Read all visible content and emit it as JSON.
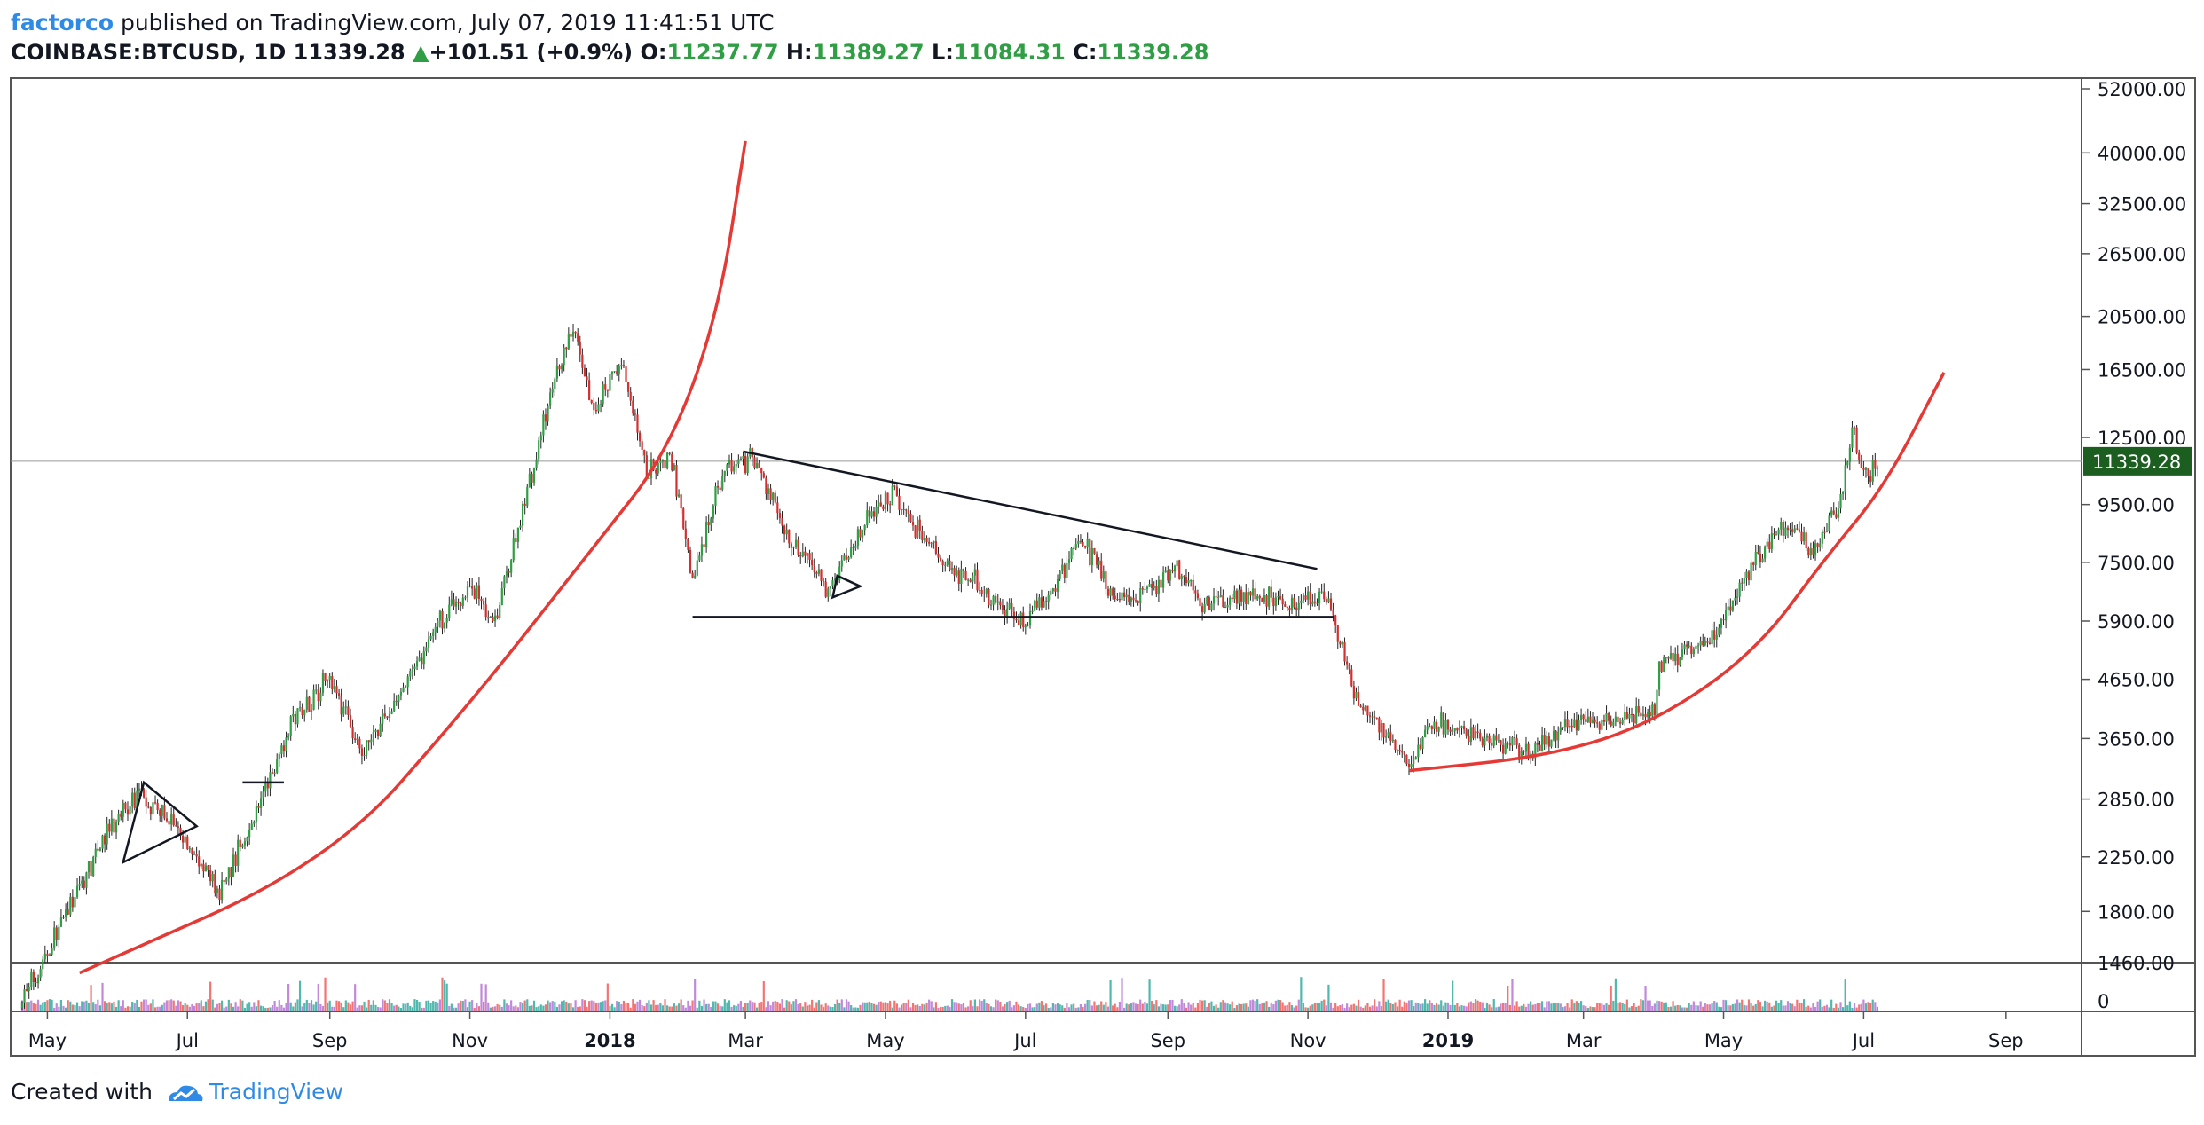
{
  "header": {
    "author": "factorco",
    "published_text": " published on TradingView.com, July 07, 2019 11:41:51 UTC",
    "symbol": "COINBASE:BTCUSD, 1D",
    "last": "11339.28",
    "change": "+101.51 (+0.9%)",
    "open_label": "O:",
    "open": "11237.77",
    "high_label": "H:",
    "high": "11389.27",
    "low_label": "L:",
    "low": "11084.31",
    "close_label": "C:",
    "close": "11339.28"
  },
  "footer": {
    "created_with": "Created with",
    "brand": "TradingView"
  },
  "colors": {
    "up": "#2f9e44",
    "down": "#d32f2f",
    "curve": "#e53935",
    "line": "#131722",
    "last_tag": "#1b5e20",
    "volume_up": "#26a69a",
    "volume_down": "#ef5350",
    "volume_other": "#b06ccf"
  },
  "icons": {
    "tradingview_logo": "tradingview-cloud-icon",
    "up_arrow": "triangle-up-icon"
  },
  "chart_data": {
    "type": "candlestick",
    "scale": "log",
    "y_ticks": [
      52000,
      40000,
      32500,
      26500,
      20500,
      16500,
      12500,
      9500,
      7500,
      5900,
      4650,
      3650,
      2850,
      2250,
      1800,
      1460
    ],
    "y_tick_labels": [
      "52000.00",
      "40000.00",
      "32500.00",
      "26500.00",
      "20500.00",
      "16500.00",
      "12500.00",
      "9500.00",
      "7500.00",
      "5900.00",
      "4650.00",
      "3650.00",
      "2850.00",
      "2250.00",
      "1800.00",
      "1460.00"
    ],
    "volume_tick_label": "0",
    "x_tick_labels": [
      "May",
      "Jul",
      "Sep",
      "Nov",
      "2018",
      "Mar",
      "May",
      "Jul",
      "Sep",
      "Nov",
      "2019",
      "Mar",
      "May",
      "Jul",
      "Sep"
    ],
    "x_tick_dates": [
      "2017-05-01",
      "2017-07-01",
      "2017-09-01",
      "2017-11-01",
      "2018-01-01",
      "2018-03-01",
      "2018-05-01",
      "2018-07-01",
      "2018-09-01",
      "2018-11-01",
      "2019-01-01",
      "2019-03-01",
      "2019-05-01",
      "2019-07-01",
      "2019-09-01"
    ],
    "x_range": [
      "2017-04-15",
      "2019-09-20"
    ],
    "last_price": 11339.28,
    "last_price_label": "11339.28",
    "price_path": [
      [
        "2017-04-20",
        1250
      ],
      [
        "2017-05-10",
        1800
      ],
      [
        "2017-05-25",
        2400
      ],
      [
        "2017-06-10",
        2950
      ],
      [
        "2017-06-25",
        2550
      ],
      [
        "2017-07-15",
        1950
      ],
      [
        "2017-08-01",
        2750
      ],
      [
        "2017-08-15",
        3900
      ],
      [
        "2017-09-01",
        4750
      ],
      [
        "2017-09-15",
        3400
      ],
      [
        "2017-10-01",
        4300
      ],
      [
        "2017-10-15",
        5600
      ],
      [
        "2017-11-01",
        6800
      ],
      [
        "2017-11-12",
        5900
      ],
      [
        "2017-11-25",
        9500
      ],
      [
        "2017-12-08",
        16000
      ],
      [
        "2017-12-17",
        19500
      ],
      [
        "2017-12-24",
        13800
      ],
      [
        "2018-01-06",
        17000
      ],
      [
        "2018-01-17",
        10800
      ],
      [
        "2018-01-28",
        11500
      ],
      [
        "2018-02-06",
        6900
      ],
      [
        "2018-02-20",
        11200
      ],
      [
        "2018-03-05",
        11400
      ],
      [
        "2018-03-20",
        8200
      ],
      [
        "2018-04-06",
        6700
      ],
      [
        "2018-04-25",
        9300
      ],
      [
        "2018-05-05",
        9800
      ],
      [
        "2018-05-25",
        7500
      ],
      [
        "2018-06-10",
        6900
      ],
      [
        "2018-06-28",
        5900
      ],
      [
        "2018-07-10",
        6400
      ],
      [
        "2018-07-25",
        8300
      ],
      [
        "2018-08-10",
        6300
      ],
      [
        "2018-08-25",
        6700
      ],
      [
        "2018-09-05",
        7300
      ],
      [
        "2018-09-15",
        6300
      ],
      [
        "2018-10-01",
        6600
      ],
      [
        "2018-10-20",
        6450
      ],
      [
        "2018-11-10",
        6350
      ],
      [
        "2018-11-20",
        4500
      ],
      [
        "2018-12-01",
        3900
      ],
      [
        "2018-12-15",
        3250
      ],
      [
        "2018-12-25",
        3900
      ],
      [
        "2019-01-10",
        3700
      ],
      [
        "2019-02-07",
        3400
      ],
      [
        "2019-02-20",
        3900
      ],
      [
        "2019-03-15",
        3950
      ],
      [
        "2019-04-01",
        4100
      ],
      [
        "2019-04-03",
        4900
      ],
      [
        "2019-04-25",
        5400
      ],
      [
        "2019-05-12",
        7200
      ],
      [
        "2019-05-28",
        8700
      ],
      [
        "2019-06-10",
        7900
      ],
      [
        "2019-06-20",
        9500
      ],
      [
        "2019-06-26",
        12900
      ],
      [
        "2019-07-02",
        10600
      ],
      [
        "2019-07-07",
        11339
      ]
    ],
    "trendlines": [
      {
        "kind": "triangle-upper",
        "points": [
          [
            "2018-02-28",
            11800
          ],
          [
            "2018-11-05",
            7300
          ]
        ]
      },
      {
        "kind": "triangle-lower",
        "points": [
          [
            "2018-02-06",
            6000
          ],
          [
            "2018-11-12",
            6000
          ]
        ]
      },
      {
        "kind": "pennant-2017-jul",
        "points": [
          [
            "2017-06-12",
            3050
          ],
          [
            "2017-07-05",
            2550
          ],
          [
            "2017-06-03",
            2200
          ]
        ]
      },
      {
        "kind": "flag-2017-aug",
        "points": [
          [
            "2017-07-25",
            3050
          ],
          [
            "2017-08-12",
            3050
          ]
        ]
      },
      {
        "kind": "pennant-2018-apr",
        "points": [
          [
            "2018-04-10",
            7100
          ],
          [
            "2018-04-20",
            6800
          ],
          [
            "2018-04-08",
            6500
          ]
        ]
      }
    ],
    "curves": [
      {
        "kind": "parabolic-2017",
        "points": [
          [
            "2017-05-15",
            1400
          ],
          [
            "2017-09-01",
            2200
          ],
          [
            "2017-11-01",
            4200
          ],
          [
            "2017-12-25",
            8000
          ],
          [
            "2018-01-26",
            11700
          ],
          [
            "2018-02-17",
            20500
          ],
          [
            "2018-03-01",
            42000
          ]
        ]
      },
      {
        "kind": "parabolic-2019",
        "points": [
          [
            "2018-12-15",
            3200
          ],
          [
            "2019-02-15",
            3400
          ],
          [
            "2019-04-01",
            3900
          ],
          [
            "2019-05-15",
            5200
          ],
          [
            "2019-06-15",
            7700
          ],
          [
            "2019-07-10",
            10200
          ],
          [
            "2019-08-05",
            16300
          ]
        ]
      }
    ]
  }
}
